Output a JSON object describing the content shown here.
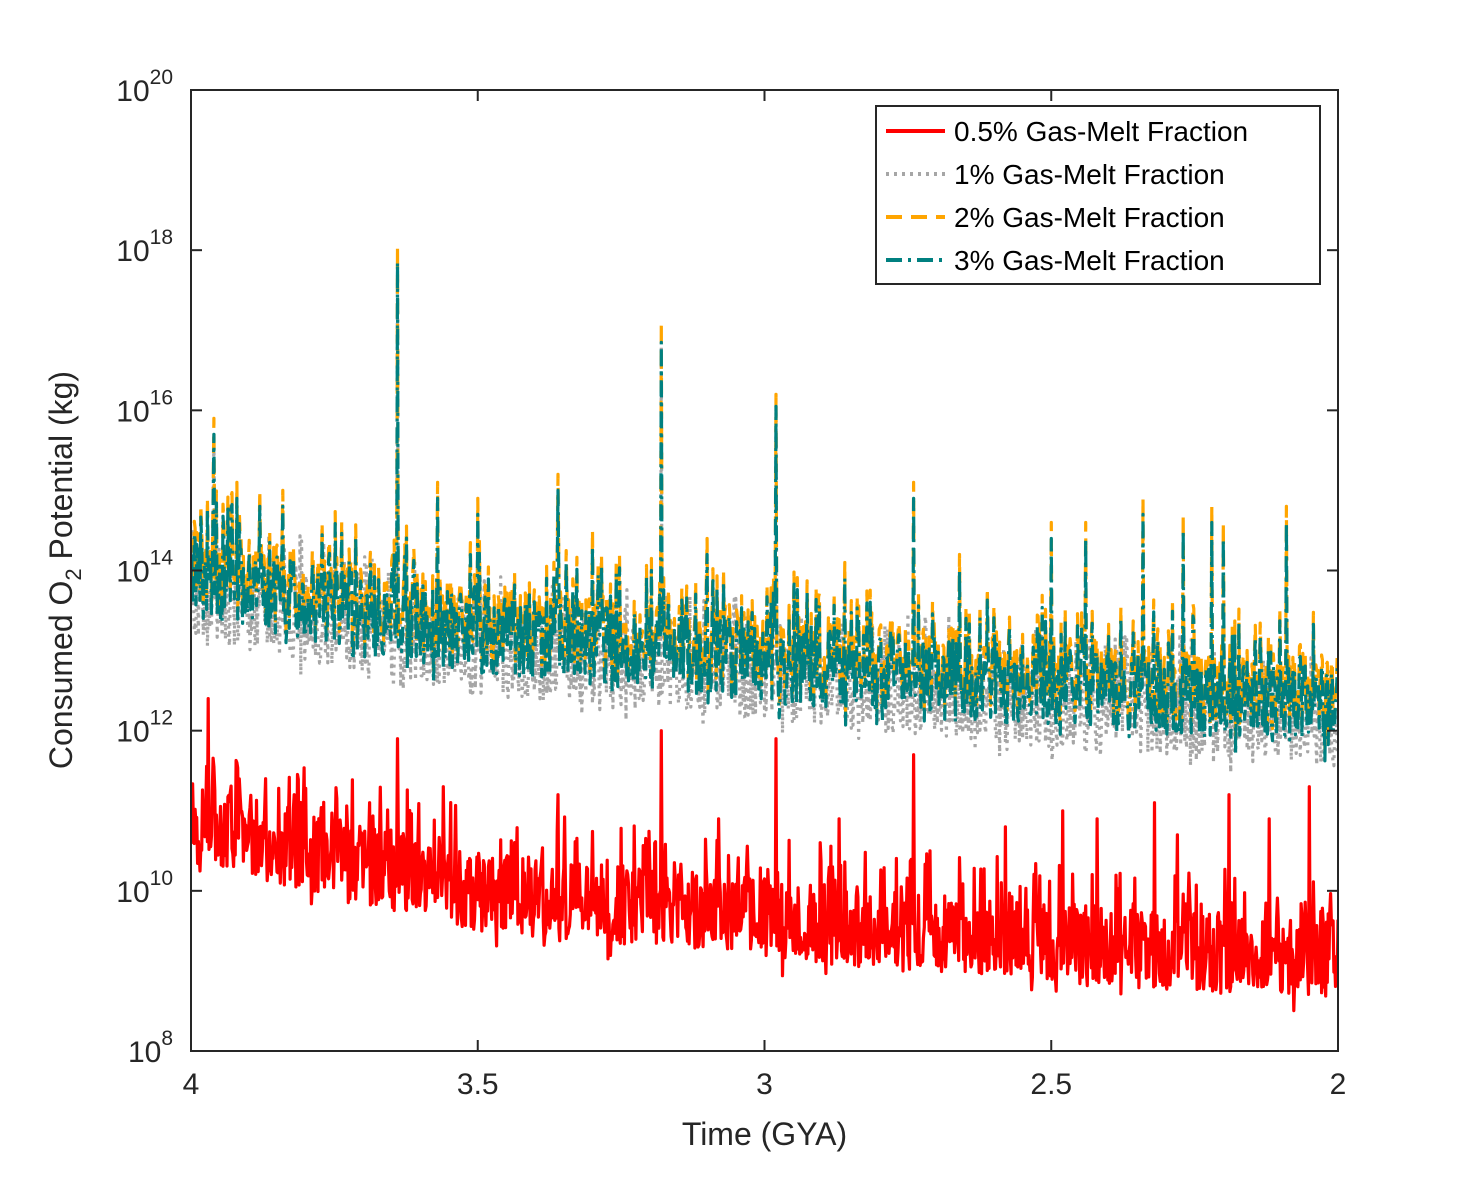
{
  "chart_data": {
    "type": "line",
    "xlabel": "Time (GYA)",
    "ylabel_main": "Consumed O",
    "ylabel_sub": "2",
    "ylabel_rest": " Potential (kg)",
    "xlim": [
      4,
      2
    ],
    "x_reversed": true,
    "y_scale": "log",
    "ylim": [
      100000000.0,
      1e+20
    ],
    "x_ticks": [
      4,
      3.5,
      3,
      2.5,
      2
    ],
    "x_tick_labels": [
      "4",
      "3.5",
      "3",
      "2.5",
      "2"
    ],
    "y_ticks": [
      8,
      10,
      12,
      14,
      16,
      18,
      20
    ],
    "y_tick_labels": [
      {
        "base": "10",
        "exp": "8"
      },
      {
        "base": "10",
        "exp": "10"
      },
      {
        "base": "10",
        "exp": "12"
      },
      {
        "base": "10",
        "exp": "14"
      },
      {
        "base": "10",
        "exp": "16"
      },
      {
        "base": "10",
        "exp": "18"
      },
      {
        "base": "10",
        "exp": "20"
      }
    ],
    "grid": false,
    "legend_position": "top-right",
    "series": [
      {
        "name": "0.5% Gas-Melt Fraction",
        "color": "#ff0000",
        "style": "solid",
        "baseline_log10": [
          [
            4.0,
            10.8
          ],
          [
            3.5,
            9.95
          ],
          [
            3.0,
            9.6
          ],
          [
            2.5,
            9.3
          ],
          [
            2.0,
            9.1
          ]
        ],
        "spikes": [
          [
            3.97,
            12.4
          ],
          [
            3.64,
            11.9
          ],
          [
            3.18,
            12.0
          ],
          [
            2.98,
            11.9
          ],
          [
            2.74,
            11.7
          ],
          [
            3.92,
            11.6
          ],
          [
            3.87,
            11.4
          ],
          [
            3.82,
            11.2
          ],
          [
            3.56,
            11.3
          ],
          [
            3.36,
            11.2
          ],
          [
            3.08,
            10.9
          ],
          [
            2.87,
            10.9
          ],
          [
            2.58,
            10.8
          ],
          [
            2.48,
            11.0
          ],
          [
            2.42,
            10.9
          ],
          [
            2.32,
            11.1
          ],
          [
            2.19,
            11.2
          ],
          [
            2.05,
            11.3
          ],
          [
            2.28,
            10.7
          ],
          [
            2.12,
            10.9
          ]
        ]
      },
      {
        "name": "1% Gas-Melt Fraction",
        "color": "#a6a6a6",
        "style": "dotted",
        "baseline_log10": [
          [
            4.0,
            13.6
          ],
          [
            3.5,
            12.9
          ],
          [
            3.0,
            12.55
          ],
          [
            2.5,
            12.25
          ],
          [
            2.0,
            12.0
          ]
        ],
        "spikes": [
          [
            3.64,
            17.8
          ],
          [
            3.18,
            16.8
          ],
          [
            2.98,
            16.0
          ],
          [
            3.96,
            15.7
          ]
        ]
      },
      {
        "name": "2% Gas-Melt Fraction",
        "color": "#ffa500",
        "style": "dashed",
        "baseline_log10": [
          [
            4.0,
            14.0
          ],
          [
            3.5,
            13.3
          ],
          [
            3.0,
            12.95
          ],
          [
            2.5,
            12.65
          ],
          [
            2.0,
            12.4
          ]
        ],
        "spikes": [
          [
            3.64,
            18.05
          ],
          [
            3.18,
            17.1
          ],
          [
            2.98,
            16.2
          ],
          [
            3.96,
            15.9
          ],
          [
            3.92,
            15.1
          ],
          [
            3.88,
            15.0
          ],
          [
            3.84,
            15.0
          ],
          [
            3.57,
            15.1
          ],
          [
            3.36,
            15.2
          ],
          [
            3.5,
            14.9
          ],
          [
            2.74,
            15.1
          ],
          [
            2.34,
            14.9
          ],
          [
            2.22,
            14.8
          ],
          [
            2.09,
            14.8
          ],
          [
            2.5,
            14.6
          ],
          [
            2.44,
            14.6
          ],
          [
            2.27,
            14.7
          ],
          [
            2.2,
            14.6
          ],
          [
            2.66,
            14.2
          ],
          [
            2.86,
            14.1
          ],
          [
            3.3,
            14.5
          ],
          [
            3.1,
            14.4
          ]
        ]
      },
      {
        "name": "3% Gas-Melt Fraction",
        "color": "#008080",
        "style": "dashdot",
        "baseline_log10": [
          [
            4.0,
            13.85
          ],
          [
            3.5,
            13.15
          ],
          [
            3.0,
            12.8
          ],
          [
            2.5,
            12.5
          ],
          [
            2.0,
            12.25
          ]
        ],
        "spikes": [
          [
            3.64,
            17.85
          ],
          [
            3.18,
            16.85
          ],
          [
            2.98,
            16.05
          ],
          [
            3.96,
            15.7
          ],
          [
            3.92,
            14.9
          ],
          [
            3.88,
            14.8
          ],
          [
            3.84,
            14.8
          ],
          [
            3.57,
            14.9
          ],
          [
            3.36,
            15.0
          ],
          [
            3.5,
            14.7
          ],
          [
            2.74,
            14.9
          ],
          [
            2.34,
            14.7
          ],
          [
            2.22,
            14.6
          ],
          [
            2.09,
            14.6
          ],
          [
            2.5,
            14.4
          ],
          [
            2.44,
            14.4
          ],
          [
            2.27,
            14.5
          ],
          [
            2.2,
            14.4
          ],
          [
            2.66,
            14.0
          ],
          [
            2.86,
            13.9
          ],
          [
            3.3,
            14.3
          ],
          [
            3.1,
            14.2
          ]
        ]
      }
    ]
  }
}
